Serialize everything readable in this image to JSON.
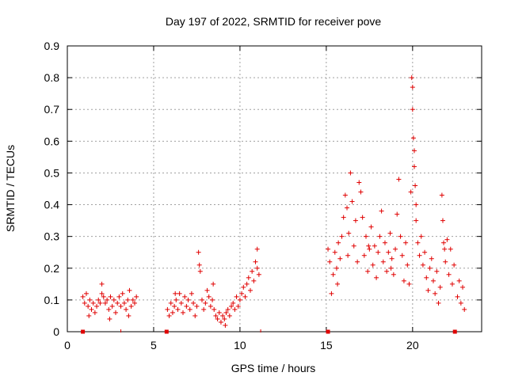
{
  "chart_data": {
    "type": "scatter",
    "title": "Day 197 of 2022, SRMTID for receiver pove",
    "xlabel": "GPS time / hours",
    "ylabel": "SRMTID / TECUs",
    "xlim": [
      0,
      24
    ],
    "ylim": [
      0,
      0.9
    ],
    "xticks": [
      0,
      5,
      10,
      15,
      20
    ],
    "xtick_labels": [
      "0",
      "5",
      "10",
      "15",
      "20"
    ],
    "yticks": [
      0,
      0.1,
      0.2,
      0.3,
      0.4,
      0.5,
      0.6,
      0.7,
      0.8,
      0.9
    ],
    "ytick_labels": [
      "0",
      "0.1",
      "0.2",
      "0.3",
      "0.4",
      "0.5",
      "0.6",
      "0.7",
      "0.8",
      "0.9"
    ],
    "grid": true,
    "marker": "+",
    "color": "#e00000",
    "series": [
      {
        "name": "SRMTID",
        "points": [
          [
            0.9,
            0.11
          ],
          [
            1.0,
            0.09
          ],
          [
            1.1,
            0.12
          ],
          [
            1.2,
            0.08
          ],
          [
            1.3,
            0.1
          ],
          [
            1.4,
            0.07
          ],
          [
            1.5,
            0.09
          ],
          [
            1.6,
            0.06
          ],
          [
            1.7,
            0.08
          ],
          [
            1.8,
            0.1
          ],
          [
            1.9,
            0.09
          ],
          [
            2.0,
            0.12
          ],
          [
            2.0,
            0.15
          ],
          [
            2.1,
            0.11
          ],
          [
            2.2,
            0.09
          ],
          [
            2.3,
            0.1
          ],
          [
            2.4,
            0.07
          ],
          [
            2.5,
            0.11
          ],
          [
            2.6,
            0.08
          ],
          [
            2.7,
            0.1
          ],
          [
            2.8,
            0.06
          ],
          [
            2.9,
            0.09
          ],
          [
            3.0,
            0.11
          ],
          [
            3.1,
            0.08
          ],
          [
            3.2,
            0.12
          ],
          [
            3.3,
            0.09
          ],
          [
            3.4,
            0.07
          ],
          [
            3.5,
            0.1
          ],
          [
            3.6,
            0.13
          ],
          [
            3.7,
            0.08
          ],
          [
            3.8,
            0.1
          ],
          [
            3.9,
            0.09
          ],
          [
            4.0,
            0.11
          ],
          [
            1.25,
            0.05
          ],
          [
            2.45,
            0.04
          ],
          [
            3.55,
            0.05
          ],
          [
            5.8,
            0.07
          ],
          [
            5.9,
            0.05
          ],
          [
            6.0,
            0.09
          ],
          [
            6.1,
            0.06
          ],
          [
            6.2,
            0.08
          ],
          [
            6.3,
            0.1
          ],
          [
            6.4,
            0.07
          ],
          [
            6.5,
            0.12
          ],
          [
            6.6,
            0.09
          ],
          [
            6.7,
            0.06
          ],
          [
            6.8,
            0.11
          ],
          [
            6.9,
            0.08
          ],
          [
            7.0,
            0.1
          ],
          [
            7.1,
            0.07
          ],
          [
            7.2,
            0.12
          ],
          [
            7.3,
            0.09
          ],
          [
            7.4,
            0.05
          ],
          [
            7.5,
            0.08
          ],
          [
            7.6,
            0.25
          ],
          [
            7.65,
            0.21
          ],
          [
            7.7,
            0.19
          ],
          [
            7.8,
            0.1
          ],
          [
            7.9,
            0.07
          ],
          [
            8.0,
            0.09
          ],
          [
            8.1,
            0.13
          ],
          [
            8.2,
            0.11
          ],
          [
            8.3,
            0.08
          ],
          [
            8.4,
            0.1
          ],
          [
            8.5,
            0.07
          ],
          [
            8.6,
            0.05
          ],
          [
            8.7,
            0.04
          ],
          [
            8.8,
            0.06
          ],
          [
            8.9,
            0.03
          ],
          [
            9.0,
            0.05
          ],
          [
            9.1,
            0.04
          ],
          [
            9.2,
            0.06
          ],
          [
            9.3,
            0.07
          ],
          [
            9.4,
            0.05
          ],
          [
            9.5,
            0.08
          ],
          [
            9.6,
            0.09
          ],
          [
            9.7,
            0.07
          ],
          [
            9.8,
            0.11
          ],
          [
            9.9,
            0.08
          ],
          [
            10.0,
            0.1
          ],
          [
            10.1,
            0.12
          ],
          [
            10.2,
            0.14
          ],
          [
            10.3,
            0.11
          ],
          [
            10.4,
            0.15
          ],
          [
            10.5,
            0.17
          ],
          [
            10.6,
            0.13
          ],
          [
            10.7,
            0.19
          ],
          [
            10.8,
            0.16
          ],
          [
            10.9,
            0.22
          ],
          [
            11.0,
            0.2
          ],
          [
            11.0,
            0.26
          ],
          [
            11.1,
            0.18
          ],
          [
            6.25,
            0.12
          ],
          [
            8.45,
            0.15
          ],
          [
            9.15,
            0.02
          ],
          [
            15.1,
            0.26
          ],
          [
            15.2,
            0.22
          ],
          [
            15.3,
            0.12
          ],
          [
            15.4,
            0.18
          ],
          [
            15.5,
            0.25
          ],
          [
            15.6,
            0.2
          ],
          [
            15.7,
            0.28
          ],
          [
            15.8,
            0.23
          ],
          [
            15.9,
            0.3
          ],
          [
            16.0,
            0.36
          ],
          [
            16.1,
            0.43
          ],
          [
            16.2,
            0.39
          ],
          [
            16.3,
            0.31
          ],
          [
            16.4,
            0.5
          ],
          [
            16.5,
            0.41
          ],
          [
            16.6,
            0.27
          ],
          [
            16.7,
            0.35
          ],
          [
            16.8,
            0.22
          ],
          [
            16.9,
            0.47
          ],
          [
            17.0,
            0.44
          ],
          [
            17.1,
            0.36
          ],
          [
            17.2,
            0.24
          ],
          [
            17.3,
            0.3
          ],
          [
            17.4,
            0.19
          ],
          [
            17.5,
            0.26
          ],
          [
            17.6,
            0.33
          ],
          [
            17.7,
            0.21
          ],
          [
            17.8,
            0.27
          ],
          [
            17.9,
            0.17
          ],
          [
            18.0,
            0.25
          ],
          [
            18.1,
            0.3
          ],
          [
            18.2,
            0.38
          ],
          [
            18.3,
            0.22
          ],
          [
            18.4,
            0.28
          ],
          [
            18.5,
            0.19
          ],
          [
            18.6,
            0.25
          ],
          [
            18.7,
            0.31
          ],
          [
            18.8,
            0.23
          ],
          [
            18.9,
            0.18
          ],
          [
            19.0,
            0.26
          ],
          [
            19.1,
            0.37
          ],
          [
            19.2,
            0.48
          ],
          [
            19.3,
            0.3
          ],
          [
            19.4,
            0.24
          ],
          [
            19.5,
            0.16
          ],
          [
            19.6,
            0.28
          ],
          [
            19.7,
            0.21
          ],
          [
            19.8,
            0.15
          ],
          [
            19.9,
            0.44
          ],
          [
            19.95,
            0.8
          ],
          [
            20.0,
            0.77
          ],
          [
            20.0,
            0.7
          ],
          [
            20.05,
            0.61
          ],
          [
            20.1,
            0.52
          ],
          [
            20.1,
            0.57
          ],
          [
            20.15,
            0.46
          ],
          [
            20.2,
            0.4
          ],
          [
            20.2,
            0.35
          ],
          [
            20.3,
            0.28
          ],
          [
            20.4,
            0.24
          ],
          [
            20.5,
            0.3
          ],
          [
            20.6,
            0.21
          ],
          [
            20.7,
            0.25
          ],
          [
            20.8,
            0.17
          ],
          [
            20.9,
            0.13
          ],
          [
            21.0,
            0.2
          ],
          [
            21.1,
            0.23
          ],
          [
            21.2,
            0.16
          ],
          [
            21.3,
            0.12
          ],
          [
            21.4,
            0.19
          ],
          [
            21.5,
            0.09
          ],
          [
            21.6,
            0.14
          ],
          [
            21.7,
            0.43
          ],
          [
            21.75,
            0.35
          ],
          [
            21.8,
            0.28
          ],
          [
            21.9,
            0.22
          ],
          [
            22.0,
            0.29
          ],
          [
            22.1,
            0.18
          ],
          [
            22.2,
            0.26
          ],
          [
            22.3,
            0.15
          ],
          [
            22.4,
            0.21
          ],
          [
            22.6,
            0.11
          ],
          [
            22.7,
            0.16
          ],
          [
            22.8,
            0.09
          ],
          [
            22.9,
            0.14
          ],
          [
            23.0,
            0.07
          ],
          [
            15.65,
            0.15
          ],
          [
            16.25,
            0.24
          ],
          [
            17.45,
            0.27
          ],
          [
            18.75,
            0.2
          ],
          [
            21.85,
            0.26
          ]
        ]
      }
    ],
    "markers_on_axis": [
      0.9,
      5.75,
      15.1,
      22.45
    ],
    "minor_ticks_on_axis": [
      3.1,
      11.2
    ]
  }
}
